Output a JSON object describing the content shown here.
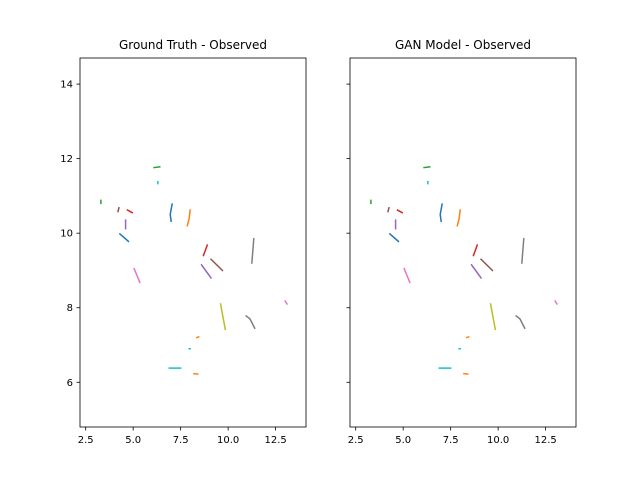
{
  "colors": [
    "#1f77b4",
    "#ff7f0e",
    "#2ca02c",
    "#d62728",
    "#9467bd",
    "#8c564b",
    "#e377c2",
    "#7f7f7f",
    "#bcbd22",
    "#17becf"
  ],
  "chart_data": [
    {
      "type": "line",
      "title": "Ground Truth - Observed",
      "xlim": [
        2.2,
        14.1
      ],
      "ylim": [
        4.8,
        14.7
      ],
      "xticks": [
        2.5,
        5.0,
        7.5,
        10.0,
        12.5
      ],
      "xtick_labels": [
        "2.5",
        "5.0",
        "7.5",
        "10.0",
        "12.5"
      ],
      "yticks": [
        6,
        8,
        10,
        12,
        14
      ],
      "ytick_labels": [
        "6",
        "8",
        "10",
        "12",
        "14"
      ],
      "show_ytick_labels": true,
      "series": [
        {
          "color_index": 2,
          "points": [
            [
              3.3,
              10.8
            ],
            [
              3.3,
              10.88
            ]
          ]
        },
        {
          "color_index": 5,
          "points": [
            [
              4.2,
              10.58
            ],
            [
              4.25,
              10.68
            ]
          ]
        },
        {
          "color_index": 3,
          "points": [
            [
              4.7,
              10.62
            ],
            [
              4.95,
              10.55
            ]
          ]
        },
        {
          "color_index": 4,
          "points": [
            [
              4.6,
              10.35
            ],
            [
              4.6,
              10.12
            ]
          ]
        },
        {
          "color_index": 0,
          "points": [
            [
              4.3,
              9.98
            ],
            [
              4.75,
              9.78
            ]
          ]
        },
        {
          "color_index": 2,
          "points": [
            [
              6.1,
              11.76
            ],
            [
              6.4,
              11.78
            ]
          ]
        },
        {
          "color_index": 9,
          "points": [
            [
              6.3,
              11.38
            ],
            [
              6.3,
              11.33
            ]
          ]
        },
        {
          "color_index": 0,
          "points": [
            [
              7.05,
              10.78
            ],
            [
              6.95,
              10.5
            ],
            [
              7.0,
              10.32
            ]
          ]
        },
        {
          "color_index": 1,
          "points": [
            [
              8.0,
              10.62
            ],
            [
              7.95,
              10.4
            ],
            [
              7.85,
              10.2
            ]
          ]
        },
        {
          "color_index": 3,
          "points": [
            [
              8.7,
              9.4
            ],
            [
              8.9,
              9.68
            ]
          ]
        },
        {
          "color_index": 4,
          "points": [
            [
              8.6,
              9.15
            ],
            [
              9.1,
              8.8
            ]
          ]
        },
        {
          "color_index": 5,
          "points": [
            [
              9.1,
              9.3
            ],
            [
              9.7,
              9.0
            ]
          ]
        },
        {
          "color_index": 7,
          "points": [
            [
              11.35,
              9.85
            ],
            [
              11.25,
              9.2
            ]
          ]
        },
        {
          "color_index": 6,
          "points": [
            [
              5.05,
              9.05
            ],
            [
              5.35,
              8.68
            ]
          ]
        },
        {
          "color_index": 6,
          "points": [
            [
              13.0,
              8.18
            ],
            [
              13.1,
              8.1
            ]
          ]
        },
        {
          "color_index": 8,
          "points": [
            [
              9.6,
              8.1
            ],
            [
              9.85,
              7.42
            ]
          ]
        },
        {
          "color_index": 7,
          "points": [
            [
              10.95,
              7.78
            ],
            [
              11.15,
              7.7
            ],
            [
              11.4,
              7.45
            ]
          ]
        },
        {
          "color_index": 1,
          "points": [
            [
              8.35,
              7.2
            ],
            [
              8.45,
              7.22
            ]
          ]
        },
        {
          "color_index": 9,
          "points": [
            [
              7.95,
              6.9
            ],
            [
              8.0,
              6.9
            ]
          ]
        },
        {
          "color_index": 9,
          "points": [
            [
              6.9,
              6.38
            ],
            [
              7.5,
              6.38
            ]
          ]
        },
        {
          "color_index": 1,
          "points": [
            [
              8.2,
              6.23
            ],
            [
              8.4,
              6.22
            ]
          ]
        }
      ]
    },
    {
      "type": "line",
      "title": "GAN Model - Observed",
      "xlim": [
        2.2,
        14.1
      ],
      "ylim": [
        4.8,
        14.7
      ],
      "xticks": [
        2.5,
        5.0,
        7.5,
        10.0,
        12.5
      ],
      "xtick_labels": [
        "2.5",
        "5.0",
        "7.5",
        "10.0",
        "12.5"
      ],
      "yticks": [
        6,
        8,
        10,
        12,
        14
      ],
      "ytick_labels": [
        "6",
        "8",
        "10",
        "12",
        "14"
      ],
      "show_ytick_labels": false,
      "series": [
        {
          "color_index": 2,
          "points": [
            [
              3.3,
              10.8
            ],
            [
              3.3,
              10.88
            ]
          ]
        },
        {
          "color_index": 5,
          "points": [
            [
              4.2,
              10.58
            ],
            [
              4.25,
              10.68
            ]
          ]
        },
        {
          "color_index": 3,
          "points": [
            [
              4.7,
              10.62
            ],
            [
              4.95,
              10.55
            ]
          ]
        },
        {
          "color_index": 4,
          "points": [
            [
              4.6,
              10.35
            ],
            [
              4.6,
              10.12
            ]
          ]
        },
        {
          "color_index": 0,
          "points": [
            [
              4.3,
              9.98
            ],
            [
              4.75,
              9.78
            ]
          ]
        },
        {
          "color_index": 2,
          "points": [
            [
              6.1,
              11.76
            ],
            [
              6.4,
              11.78
            ]
          ]
        },
        {
          "color_index": 9,
          "points": [
            [
              6.3,
              11.38
            ],
            [
              6.3,
              11.33
            ]
          ]
        },
        {
          "color_index": 0,
          "points": [
            [
              7.05,
              10.78
            ],
            [
              6.95,
              10.5
            ],
            [
              7.0,
              10.32
            ]
          ]
        },
        {
          "color_index": 1,
          "points": [
            [
              8.0,
              10.62
            ],
            [
              7.95,
              10.4
            ],
            [
              7.85,
              10.2
            ]
          ]
        },
        {
          "color_index": 3,
          "points": [
            [
              8.7,
              9.4
            ],
            [
              8.9,
              9.68
            ]
          ]
        },
        {
          "color_index": 4,
          "points": [
            [
              8.6,
              9.15
            ],
            [
              9.1,
              8.8
            ]
          ]
        },
        {
          "color_index": 5,
          "points": [
            [
              9.1,
              9.3
            ],
            [
              9.7,
              9.0
            ]
          ]
        },
        {
          "color_index": 7,
          "points": [
            [
              11.35,
              9.85
            ],
            [
              11.25,
              9.2
            ]
          ]
        },
        {
          "color_index": 6,
          "points": [
            [
              5.05,
              9.05
            ],
            [
              5.35,
              8.68
            ]
          ]
        },
        {
          "color_index": 6,
          "points": [
            [
              13.0,
              8.18
            ],
            [
              13.1,
              8.1
            ]
          ]
        },
        {
          "color_index": 8,
          "points": [
            [
              9.6,
              8.1
            ],
            [
              9.85,
              7.42
            ]
          ]
        },
        {
          "color_index": 7,
          "points": [
            [
              10.95,
              7.78
            ],
            [
              11.15,
              7.7
            ],
            [
              11.4,
              7.45
            ]
          ]
        },
        {
          "color_index": 1,
          "points": [
            [
              8.35,
              7.2
            ],
            [
              8.45,
              7.22
            ]
          ]
        },
        {
          "color_index": 9,
          "points": [
            [
              7.95,
              6.9
            ],
            [
              8.0,
              6.9
            ]
          ]
        },
        {
          "color_index": 9,
          "points": [
            [
              6.9,
              6.38
            ],
            [
              7.5,
              6.38
            ]
          ]
        },
        {
          "color_index": 1,
          "points": [
            [
              8.2,
              6.23
            ],
            [
              8.4,
              6.22
            ]
          ]
        }
      ]
    }
  ]
}
